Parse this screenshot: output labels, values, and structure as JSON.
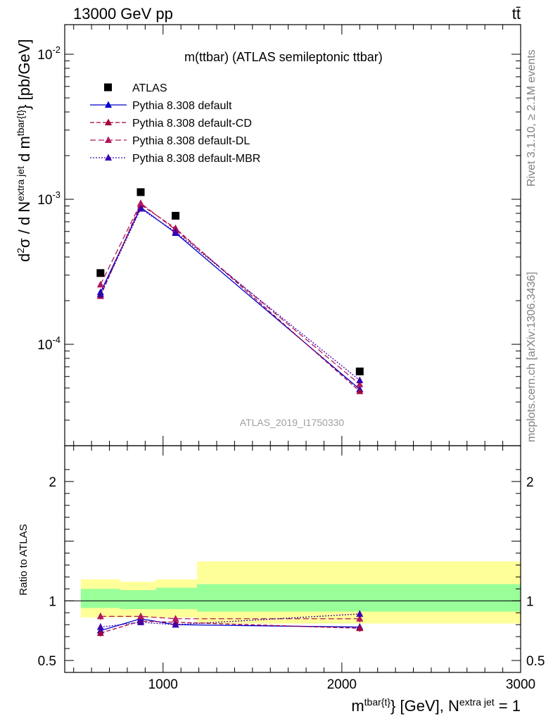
{
  "chart_data": [
    {
      "type": "line",
      "header_left": "13000 GeV pp",
      "header_right": "tt̄",
      "title": "m(ttbar) (ATLAS semileptonic ttbar)",
      "ylabel": "d²σ / d N^{extra jet} d m^{tbar{t}} [pb/GeV]",
      "ylabel_parts": {
        "p1": "d",
        "p2": "2",
        "p3": "σ / d N",
        "p4": "extra jet",
        "p5": " d m",
        "p6": "tbar{t}",
        "p7": "} [pb/GeV]"
      },
      "yscale": "log",
      "ylim": [
        2e-05,
        0.016
      ],
      "xlim": [
        450,
        3000
      ],
      "y_tick_labels": [
        {
          "m": "10",
          "e": "-4",
          "v": 0.0001
        },
        {
          "m": "10",
          "e": "-3",
          "v": 0.001
        },
        {
          "m": "10",
          "e": "-2",
          "v": 0.01
        }
      ],
      "x": [
        650,
        875,
        1070,
        2100
      ],
      "series": [
        {
          "name": "ATLAS",
          "values": [
            0.00031,
            0.00112,
            0.00077,
            6.5e-05
          ],
          "color": "#000000",
          "marker": "square"
        },
        {
          "name": "Pythia 8.308 default",
          "values": [
            0.000228,
            0.00088,
            0.000585,
            4.9e-05
          ],
          "color": "#0000cc",
          "marker": "triangle",
          "dash": ""
        },
        {
          "name": "Pythia 8.308 default-CD",
          "values": [
            0.000215,
            0.00092,
            0.00063,
            4.75e-05
          ],
          "color": "#a3003c",
          "marker": "triangle",
          "dash": "6,3"
        },
        {
          "name": "Pythia 8.308 default-DL",
          "values": [
            0.000258,
            0.00094,
            0.000615,
            5.3e-05
          ],
          "color": "#b0185e",
          "marker": "triangle",
          "dash": "8,4"
        },
        {
          "name": "Pythia 8.308 default-MBR",
          "values": [
            0.000221,
            0.00086,
            0.000595,
            5.65e-05
          ],
          "color": "#3a00b0",
          "marker": "triangle",
          "dash": "2,2"
        }
      ],
      "legend_position": "top-left",
      "watermark": "ATLAS_2019_I1750330"
    },
    {
      "type": "line",
      "ylabel": "Ratio to ATLAS",
      "ylim": [
        0.4,
        2.3
      ],
      "xlim": [
        450,
        3000
      ],
      "y_tick_labels": [
        {
          "t": "0.5",
          "v": 0.5
        },
        {
          "t": "1",
          "v": 1
        },
        {
          "t": "2",
          "v": 2
        }
      ],
      "x_tick_labels": [
        {
          "t": "1000",
          "v": 1000
        },
        {
          "t": "2000",
          "v": 2000
        },
        {
          "t": "3000",
          "v": 3000
        }
      ],
      "xlabel_parts": {
        "p1": "m",
        "p2": "tbar{t}",
        "p3": "} [GeV], N",
        "p4": "extra jet",
        "p5": " = 1"
      },
      "bands": [
        {
          "x0": 540,
          "x1": 760,
          "stat": [
            0.94,
            1.1
          ],
          "total": [
            0.86,
            1.18
          ]
        },
        {
          "x0": 760,
          "x1": 960,
          "stat": [
            0.93,
            1.09
          ],
          "total": [
            0.86,
            1.16
          ]
        },
        {
          "x0": 960,
          "x1": 1190,
          "stat": [
            0.93,
            1.11
          ],
          "total": [
            0.86,
            1.18
          ]
        },
        {
          "x0": 1190,
          "x1": 3000,
          "stat": [
            0.91,
            1.14
          ],
          "total": [
            0.81,
            1.33
          ]
        }
      ],
      "series": [
        {
          "name": "Pythia 8.308 default",
          "values": [
            0.75,
            0.85,
            0.8,
            0.78
          ],
          "err": [
            0.03,
            0.02,
            0.02,
            0.03
          ]
        },
        {
          "name": "Pythia 8.308 default-CD",
          "values": [
            0.73,
            0.83,
            0.82,
            0.77
          ],
          "err": [
            0.03,
            0.02,
            0.02,
            0.03
          ]
        },
        {
          "name": "Pythia 8.308 default-DL",
          "values": [
            0.87,
            0.87,
            0.85,
            0.85
          ],
          "err": [
            0.03,
            0.02,
            0.02,
            0.03
          ]
        },
        {
          "name": "Pythia 8.308 default-MBR",
          "values": [
            0.78,
            0.82,
            0.8,
            0.89
          ],
          "err": [
            0.03,
            0.02,
            0.02,
            0.03
          ]
        }
      ],
      "ref_line": 1
    }
  ],
  "side_labels": {
    "rivet": "Rivet 3.1.10, ≥ 2.1M events",
    "mcplots": "mcplots.cern.ch [arXiv:1306.3436]"
  }
}
